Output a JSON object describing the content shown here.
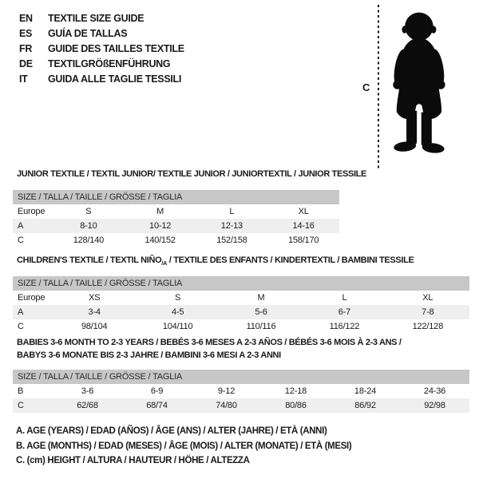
{
  "colors": {
    "table_header_bg": "#c7c7c7",
    "row_alt_bg": "#efefef",
    "text": "#1a1a1a",
    "silhouette": "#0b0b0b"
  },
  "language_guide": {
    "items": [
      {
        "code": "EN",
        "title": "TEXTILE SIZE GUIDE"
      },
      {
        "code": "ES",
        "title": "GUÍA DE TALLAS"
      },
      {
        "code": "FR",
        "title": "GUIDE DES TAILLES TEXTILE"
      },
      {
        "code": "DE",
        "title": "TEXTILGRÖßENFÜHRUNG"
      },
      {
        "code": "IT",
        "title": "GUIDA ALLE TAGLIE TESSILI"
      }
    ]
  },
  "figure": {
    "icon": "baby-silhouette-icon",
    "measure_line_icon": "dashed-height-line",
    "height_label": "C"
  },
  "sections": [
    {
      "key": "junior-textile-section",
      "title_lines": [
        [
          {
            "text": "JUNIOR TEXTILE / TEXTIL JUNIOR/ TEXTILE JUNIOR / JUNIORTEXTIL / JUNIOR TESSILE"
          }
        ]
      ],
      "table": {
        "header": "SIZE / TALLA / TAILLE / GRÖSSE / TAGLIA",
        "rows": [
          {
            "label": "Europe",
            "values": [
              "S",
              "M",
              "L",
              "XL"
            ]
          },
          {
            "label": "A",
            "values": [
              "8-10",
              "10-12",
              "12-13",
              "14-16"
            ]
          },
          {
            "label": "C",
            "values": [
              "128/140",
              "140/152",
              "152/158",
              "158/170"
            ]
          }
        ]
      }
    },
    {
      "key": "childrens-textile-section",
      "title_lines": [
        [
          {
            "text": "CHILDREN'S TEXTILE / TEXTIL NIÑO"
          },
          {
            "text": "/A",
            "sub": true
          },
          {
            "text": " / TEXTILE DES ENFANTS / KINDERTEXTIL / BAMBINI TESSILE"
          }
        ]
      ],
      "table": {
        "header": "SIZE / TALLA / TAILLE / GRÖSSE / TAGLIA",
        "rows": [
          {
            "label": "Europe",
            "values": [
              "XS",
              "S",
              "M",
              "L",
              "XL"
            ]
          },
          {
            "label": "A",
            "values": [
              "3-4",
              "4-5",
              "5-6",
              "6-7",
              "7-8"
            ]
          },
          {
            "label": "C",
            "values": [
              "98/104",
              "104/110",
              "110/116",
              "116/122",
              "122/128"
            ]
          }
        ]
      }
    },
    {
      "key": "babies-textile-section",
      "title_lines": [
        [
          {
            "text": "BABIES 3-6 MONTH TO 2-3 YEARS / BEBÉS 3-6 MESES A 2-3 AÑOS / BÉBÉS 3-6 MOIS À 2-3 ANS /"
          }
        ],
        [
          {
            "text": "BABYS 3-6 MONATE BIS 2-3 JAHRE / BAMBINI 3-6 MESI A 2-3 ANNI"
          }
        ]
      ],
      "table": {
        "header": "SIZE / TALLA / TAILLE / GRÖSSE / TAGLIA",
        "rows": [
          {
            "label": "B",
            "values": [
              "3-6",
              "6-9",
              "9-12",
              "12-18",
              "18-24",
              "24-36"
            ]
          },
          {
            "label": "C",
            "values": [
              "62/68",
              "68/74",
              "74/80",
              "80/86",
              "86/92",
              "92/98"
            ]
          }
        ]
      }
    }
  ],
  "footnotes": {
    "lines": [
      "A. AGE (YEARS) / EDAD (AÑOS) / ÂGE (ANS) / ALTER (JAHRE) / ETÀ (ANNI)",
      "B. AGE (MONTHS) / EDAD (MESES) / ÂGE (MOIS) / ALTER (MONATE) / ETÀ (MESI)",
      "C. (cm) HEIGHT / ALTURA / HAUTEUR / HÖHE / ALTEZZA"
    ]
  }
}
